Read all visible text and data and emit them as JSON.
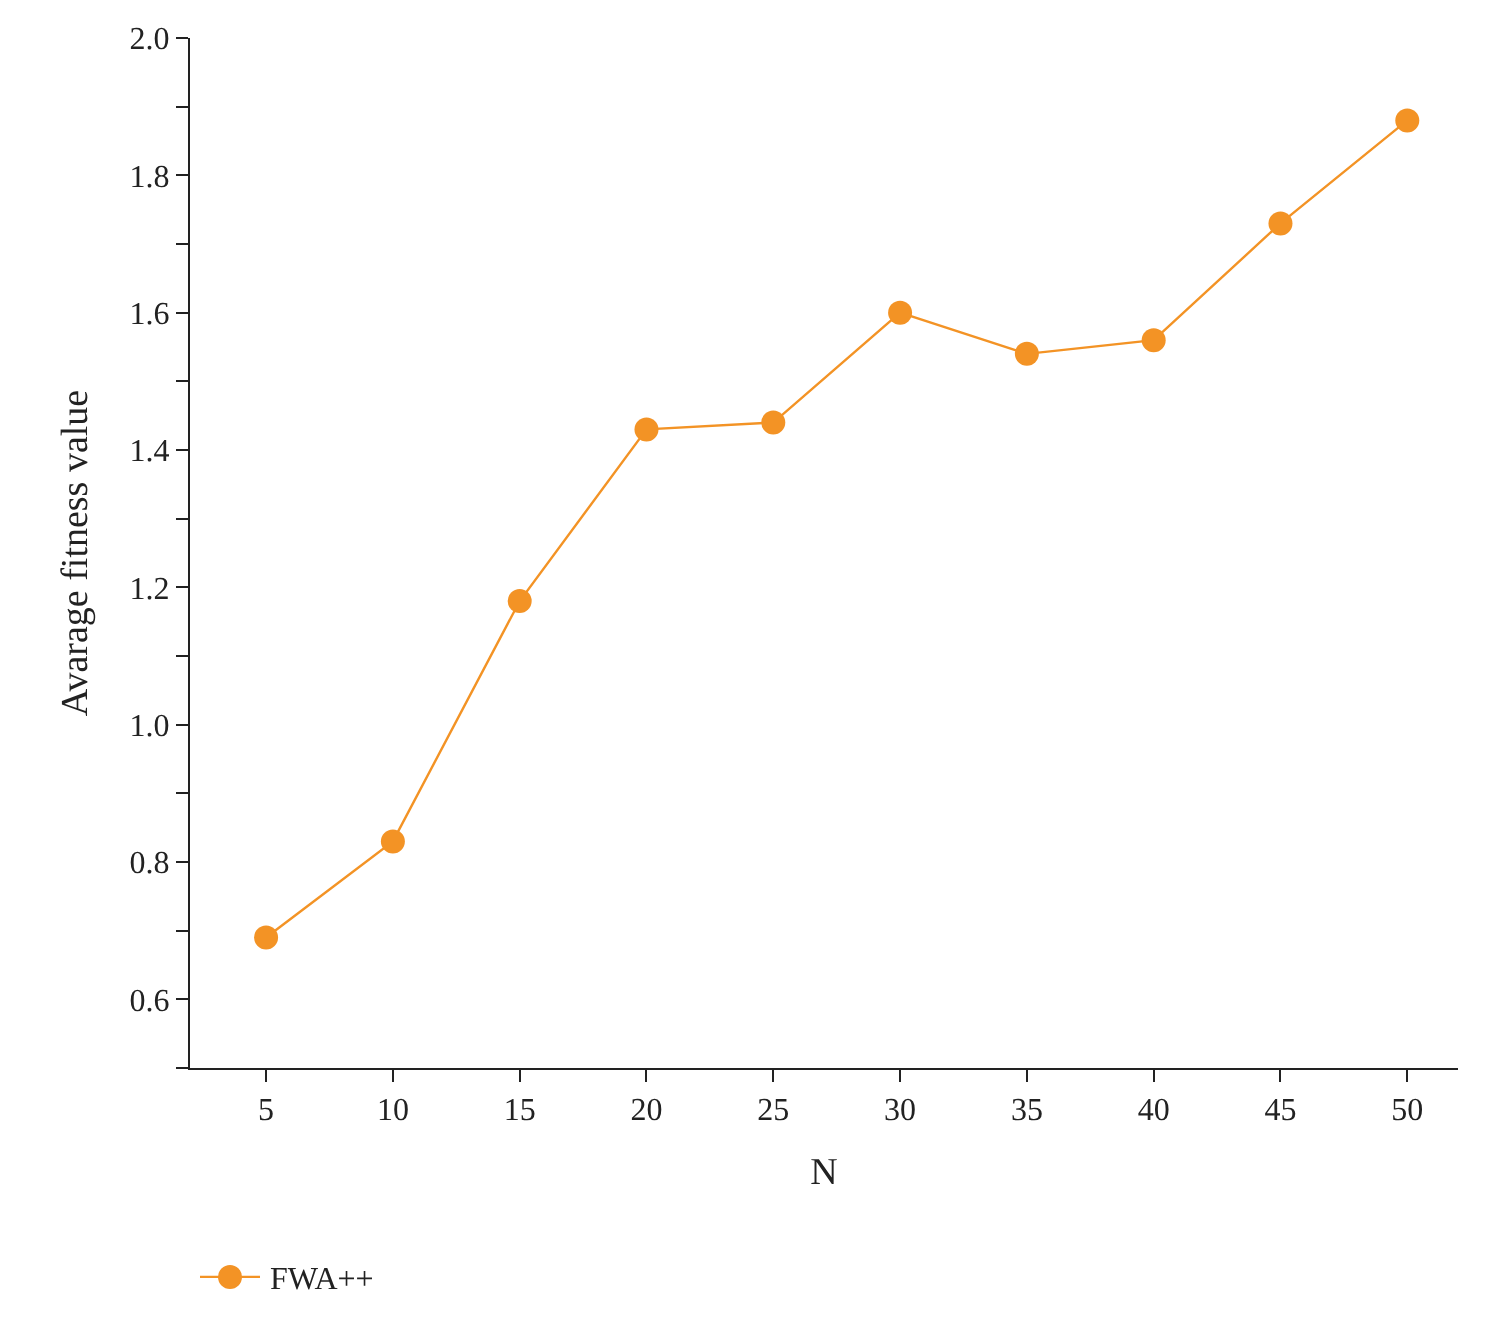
{
  "chart_data": {
    "type": "line",
    "xlabel": "N",
    "ylabel": "Avarage fitness value",
    "x": [
      5,
      10,
      15,
      20,
      25,
      30,
      35,
      40,
      45,
      50
    ],
    "series": [
      {
        "name": "FWA++",
        "color": "#f39325",
        "values": [
          0.69,
          0.83,
          1.18,
          1.43,
          1.44,
          1.6,
          1.54,
          1.56,
          1.73,
          1.88
        ]
      }
    ],
    "xlim": [
      2,
      52
    ],
    "xticks": [
      5,
      10,
      15,
      20,
      25,
      30,
      35,
      40,
      45,
      50
    ],
    "ylim": [
      0.5,
      2.0
    ],
    "yticks": [
      {
        "value": 0.5,
        "label": null
      },
      0.6,
      {
        "value": 0.7,
        "label": null
      },
      0.8,
      {
        "value": 0.9,
        "label": null
      },
      {
        "value": 1.0,
        "label": "1.0"
      },
      {
        "value": 1.1,
        "label": null
      },
      1.2,
      {
        "value": 1.3,
        "label": null
      },
      1.4,
      {
        "value": 1.5,
        "label": null
      },
      1.6,
      {
        "value": 1.7,
        "label": null
      },
      1.8,
      {
        "value": 1.9,
        "label": null
      },
      {
        "value": 2.0,
        "label": "2.0"
      }
    ],
    "grid": false,
    "legend": "bottom left",
    "marker": "circle",
    "line_style": "solid"
  }
}
